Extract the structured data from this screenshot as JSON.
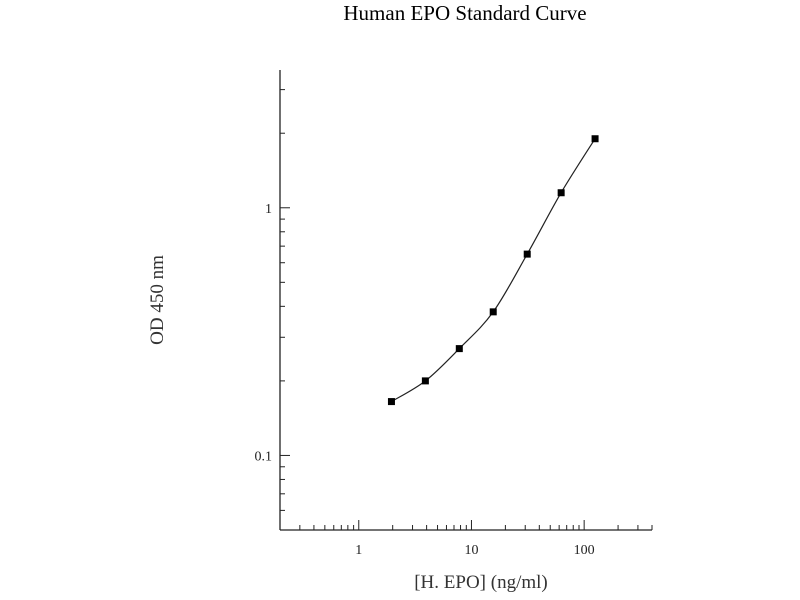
{
  "chart_data": {
    "type": "line",
    "title": "Human EPO Standard Curve",
    "xlabel": "[H. EPO] (ng/ml)",
    "ylabel": "OD 450 nm",
    "x_scale": "log",
    "y_scale": "log",
    "xlim": [
      0.2,
      400
    ],
    "ylim": [
      0.05,
      3.6
    ],
    "x_ticks": [
      {
        "value": 1,
        "label": "1"
      },
      {
        "value": 10,
        "label": "10"
      },
      {
        "value": 100,
        "label": "100"
      }
    ],
    "y_ticks": [
      {
        "value": 0.1,
        "label": "0.1"
      },
      {
        "value": 1,
        "label": "1"
      }
    ],
    "grid": false,
    "marker": "square",
    "color": "#000000",
    "x": [
      1.95,
      3.9,
      7.8,
      15.6,
      31.25,
      62.5,
      125
    ],
    "y": [
      0.165,
      0.2,
      0.27,
      0.38,
      0.65,
      1.15,
      1.9
    ]
  }
}
